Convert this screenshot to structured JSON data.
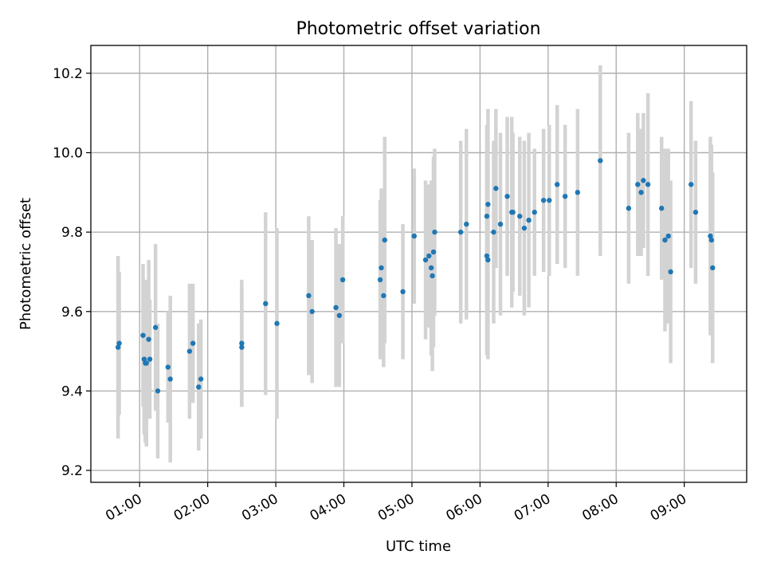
{
  "chart_data": {
    "type": "scatter",
    "title": "Photometric offset variation",
    "xlabel": "UTC time",
    "ylabel": "Photometric offset",
    "x_unit": "UTC time (HH:MM)",
    "xlim": [
      "00:17",
      "09:55"
    ],
    "ylim": [
      9.17,
      10.27
    ],
    "xticks": [
      "01:00",
      "02:00",
      "03:00",
      "04:00",
      "05:00",
      "06:00",
      "07:00",
      "08:00",
      "09:00"
    ],
    "yticks": [
      "9.2",
      "9.4",
      "9.6",
      "9.8",
      "10.0",
      "10.2"
    ],
    "grid": true,
    "point_color": "#1f77b4",
    "errorbar_color": "#d3d3d3",
    "series": [
      {
        "x": [
          "00:41",
          "00:42",
          "01:03",
          "01:04",
          "01:05",
          "01:06",
          "01:08",
          "01:09",
          "01:14",
          "01:16",
          "01:25",
          "01:27",
          "01:44",
          "01:47",
          "01:52",
          "01:54",
          "02:30",
          "02:30",
          "02:51",
          "03:01",
          "03:29",
          "03:32",
          "03:53",
          "03:56",
          "03:59",
          "04:32",
          "04:33",
          "04:35",
          "04:36",
          "04:52",
          "05:02",
          "05:12",
          "05:15",
          "05:17",
          "05:18",
          "05:19",
          "05:20",
          "05:43",
          "05:48",
          "06:06",
          "06:06",
          "06:07",
          "06:07",
          "06:12",
          "06:14",
          "06:18",
          "06:24",
          "06:28",
          "06:29",
          "06:35",
          "06:39",
          "06:43",
          "06:48",
          "06:56",
          "07:01",
          "07:08",
          "07:15",
          "07:26",
          "07:46",
          "08:11",
          "08:19",
          "08:22",
          "08:24",
          "08:28",
          "08:40",
          "08:43",
          "08:46",
          "08:48",
          "09:06",
          "09:10",
          "09:23",
          "09:24",
          "09:25"
        ],
        "y": [
          9.51,
          9.52,
          9.54,
          9.48,
          9.47,
          9.47,
          9.53,
          9.48,
          9.56,
          9.4,
          9.46,
          9.43,
          9.5,
          9.52,
          9.41,
          9.43,
          9.51,
          9.52,
          9.62,
          9.57,
          9.64,
          9.6,
          9.61,
          9.59,
          9.68,
          9.68,
          9.71,
          9.64,
          9.78,
          9.65,
          9.79,
          9.73,
          9.74,
          9.71,
          9.69,
          9.75,
          9.8,
          9.8,
          9.82,
          9.84,
          9.74,
          9.73,
          9.87,
          9.8,
          9.91,
          9.82,
          9.89,
          9.85,
          9.85,
          9.84,
          9.81,
          9.83,
          9.85,
          9.88,
          9.88,
          9.92,
          9.89,
          9.9,
          9.98,
          9.86,
          9.92,
          9.9,
          9.93,
          9.92,
          9.86,
          9.78,
          9.79,
          9.7,
          9.92,
          9.85,
          9.79,
          9.78,
          9.71
        ],
        "yerr": [
          0.23,
          0.18,
          0.18,
          0.19,
          0.2,
          0.21,
          0.2,
          0.15,
          0.21,
          0.17,
          0.14,
          0.21,
          0.17,
          0.15,
          0.16,
          0.15,
          0.15,
          0.16,
          0.23,
          0.24,
          0.2,
          0.18,
          0.2,
          0.18,
          0.16,
          0.2,
          0.2,
          0.18,
          0.26,
          0.17,
          0.17,
          0.2,
          0.18,
          0.22,
          0.24,
          0.24,
          0.21,
          0.23,
          0.24,
          0.23,
          0.25,
          0.25,
          0.24,
          0.23,
          0.2,
          0.23,
          0.2,
          0.24,
          0.2,
          0.2,
          0.22,
          0.22,
          0.16,
          0.18,
          0.19,
          0.2,
          0.18,
          0.21,
          0.24,
          0.19,
          0.18,
          0.16,
          0.17,
          0.23,
          0.18,
          0.23,
          0.22,
          0.23,
          0.21,
          0.18,
          0.25,
          0.24,
          0.24
        ]
      }
    ]
  }
}
